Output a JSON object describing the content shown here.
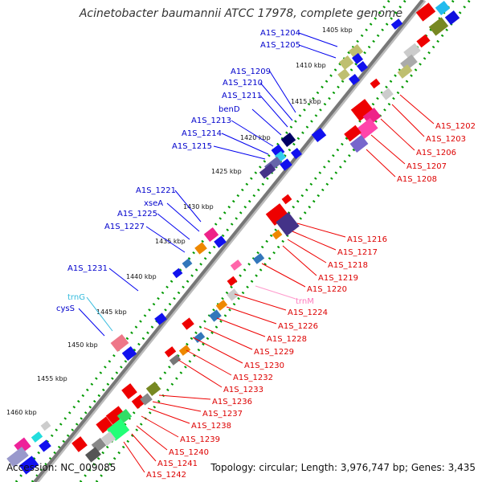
{
  "title": "Acinetobacter baumannii ATCC 17978, complete genome",
  "accession": "Accession: NC_009085",
  "topology": "Topology: circular; Length: 3,976,747 bp; Genes: 3,435",
  "kbp_ticks": [
    "1405 kbp",
    "1410 kbp",
    "1415 kbp",
    "1420 kbp",
    "1425 kbp",
    "1430 kbp",
    "1435 kbp",
    "1440 kbp",
    "1445 kbp",
    "1450 kbp",
    "1455 kbp",
    "1460 kbp"
  ],
  "left_labels": [
    "A1S_1204",
    "A1S_1205",
    "A1S_1209",
    "A1S_1210",
    "A1S_1211",
    "benD",
    "A1S_1213",
    "A1S_1214",
    "A1S_1215",
    "A1S_1221",
    "xseA",
    "A1S_1225",
    "A1S_1227",
    "A1S_1231",
    "trnG",
    "cysS"
  ],
  "right_labels": [
    "A1S_1202",
    "A1S_1203",
    "A1S_1206",
    "A1S_1207",
    "A1S_1208",
    "A1S_1216",
    "A1S_1217",
    "A1S_1218",
    "A1S_1219",
    "A1S_1220",
    "trnM",
    "A1S_1224",
    "A1S_1226",
    "A1S_1228",
    "A1S_1229",
    "A1S_1230",
    "A1S_1232",
    "A1S_1233",
    "A1S_1236",
    "A1S_1237",
    "A1S_1238",
    "A1S_1239",
    "A1S_1240",
    "A1S_1241",
    "A1S_1242"
  ],
  "colors": {
    "forward": "#0000ee",
    "reverse": "#ee0000",
    "backbone": "#777777",
    "track": "#009900"
  }
}
